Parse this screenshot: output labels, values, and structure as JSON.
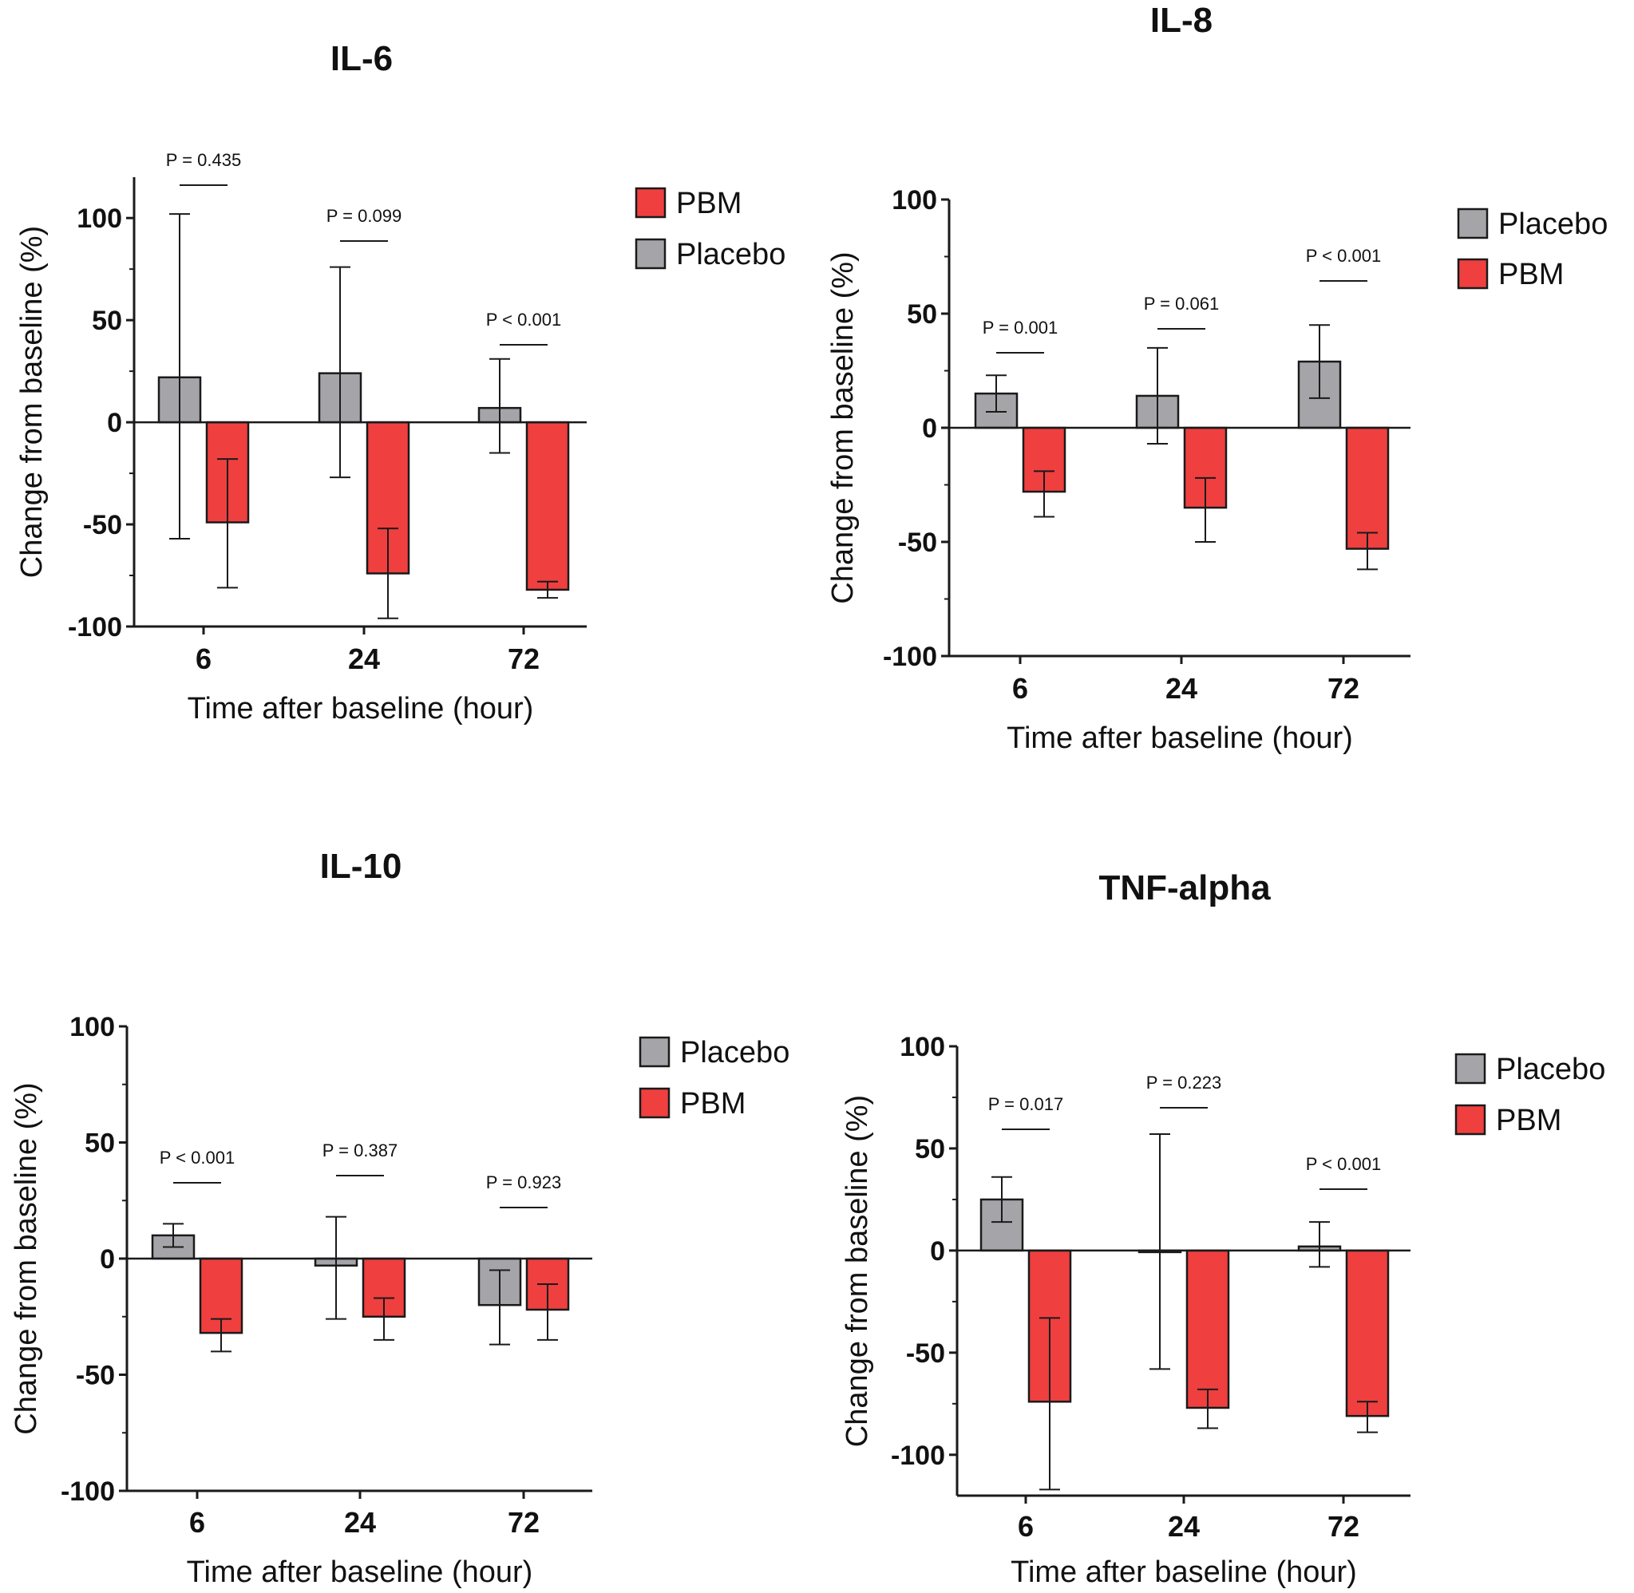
{
  "colors": {
    "placebo": "#a5a5a9",
    "pbm": "#ef3f3f",
    "stroke": "#1a1a1a"
  },
  "chart_data": [
    {
      "type": "bar",
      "title": "IL-6",
      "xlabel": "Time after baseline (hour)",
      "ylabel": "Change from baseline (%)",
      "ylim": [
        -100,
        120
      ],
      "yticks": [
        "100",
        "50",
        "0",
        "-50",
        "-100"
      ],
      "categories": [
        "6",
        "24",
        "72"
      ],
      "legend": [
        "PBM",
        "Placebo"
      ],
      "series": [
        {
          "name": "Placebo",
          "values": [
            22,
            24,
            7
          ],
          "err_low": [
            -57,
            -27,
            -15
          ],
          "err_high": [
            102,
            76,
            31
          ]
        },
        {
          "name": "PBM",
          "values": [
            -49,
            -74,
            -82
          ],
          "err_low": [
            -81,
            -96,
            -86
          ],
          "err_high": [
            -18,
            -52,
            -78
          ]
        }
      ],
      "p_values": [
        "P = 0.435",
        "P = 0.099",
        "P < 0.001"
      ]
    },
    {
      "type": "bar",
      "title": "IL-8",
      "xlabel": "Time after baseline (hour)",
      "ylabel": "Change from baseline (%)",
      "ylim": [
        -100,
        100
      ],
      "yticks": [
        "100",
        "50",
        "0",
        "-50",
        "-100"
      ],
      "categories": [
        "6",
        "24",
        "72"
      ],
      "legend": [
        "Placebo",
        "PBM"
      ],
      "series": [
        {
          "name": "Placebo",
          "values": [
            15,
            14,
            29
          ],
          "err_low": [
            7,
            -7,
            13
          ],
          "err_high": [
            23,
            35,
            45
          ]
        },
        {
          "name": "PBM",
          "values": [
            -28,
            -35,
            -53
          ],
          "err_low": [
            -39,
            -50,
            -62
          ],
          "err_high": [
            -19,
            -22,
            -46
          ]
        }
      ],
      "p_values": [
        "P = 0.001",
        "P = 0.061",
        "P < 0.001"
      ]
    },
    {
      "type": "bar",
      "title": "IL-10",
      "xlabel": "Time after baseline (hour)",
      "ylabel": "Change from baseline (%)",
      "ylim": [
        -100,
        100
      ],
      "yticks": [
        "100",
        "50",
        "0",
        "-50",
        "-100"
      ],
      "categories": [
        "6",
        "24",
        "72"
      ],
      "legend": [
        "Placebo",
        "PBM"
      ],
      "series": [
        {
          "name": "Placebo",
          "values": [
            10,
            -3,
            -20
          ],
          "err_low": [
            5,
            -26,
            -37
          ],
          "err_high": [
            15,
            18,
            -5
          ]
        },
        {
          "name": "PBM",
          "values": [
            -32,
            -25,
            -22
          ],
          "err_low": [
            -40,
            -35,
            -35
          ],
          "err_high": [
            -26,
            -17,
            -11
          ]
        }
      ],
      "p_values": [
        "P < 0.001",
        "P = 0.387",
        "P = 0.923"
      ]
    },
    {
      "type": "bar",
      "title": "TNF-alpha",
      "xlabel": "Time after baseline (hour)",
      "ylabel": "Change from baseline (%)",
      "ylim": [
        -120,
        100
      ],
      "yticks": [
        "100",
        "50",
        "0",
        "-50",
        "-100"
      ],
      "categories": [
        "6",
        "24",
        "72"
      ],
      "legend": [
        "Placebo",
        "PBM"
      ],
      "series": [
        {
          "name": "Placebo",
          "values": [
            25,
            0,
            2
          ],
          "err_low": [
            14,
            -58,
            -8
          ],
          "err_high": [
            36,
            57,
            14
          ]
        },
        {
          "name": "PBM",
          "values": [
            -74,
            -77,
            -81
          ],
          "err_low": [
            -117,
            -87,
            -89
          ],
          "err_high": [
            -33,
            -68,
            -74
          ]
        }
      ],
      "p_values": [
        "P = 0.017",
        "P = 0.223",
        "P < 0.001"
      ]
    }
  ]
}
